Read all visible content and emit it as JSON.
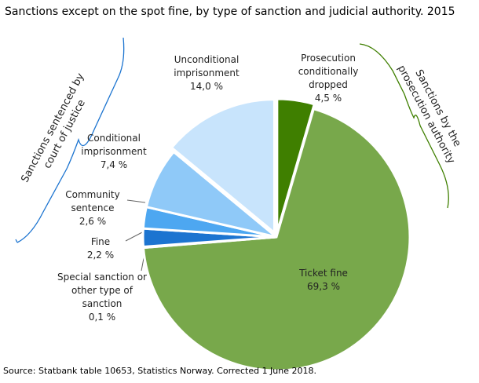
{
  "chart_data": {
    "type": "pie",
    "title": "Sanctions except on the spot fine, by type of sanction and judicial authority. 2015",
    "categories": [
      "Prosecution conditionally dropped",
      "Ticket fine",
      "Special sanction or other type of sanction",
      "Fine",
      "Community sentence",
      "Conditional imprisonment",
      "Unconditional imprisonment"
    ],
    "values": [
      4.5,
      69.3,
      0.1,
      2.2,
      2.6,
      7.4,
      14.0
    ],
    "value_labels": [
      "4,5 %",
      "69,3 %",
      "0,1 %",
      "2,2 %",
      "2,6 %",
      "7,4 %",
      "14,0 %"
    ],
    "colors": [
      "#3f7f00",
      "#78a84b",
      "#0b4f9e",
      "#1c74d0",
      "#4da7f1",
      "#8fc9f8",
      "#c8e4fc"
    ],
    "groups": [
      "Sanctions sentenced by court of justice",
      "Sanctions by the prosecution authority"
    ],
    "source": "Source: Statbank table 10653, Statistics Norway.  Corrected 1 June 2018."
  }
}
